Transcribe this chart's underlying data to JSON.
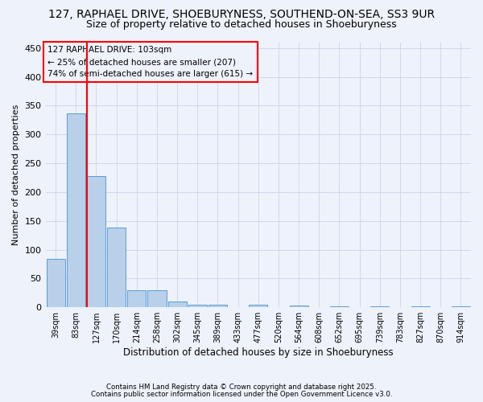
{
  "title": "127, RAPHAEL DRIVE, SHOEBURYNESS, SOUTHEND-ON-SEA, SS3 9UR",
  "subtitle": "Size of property relative to detached houses in Shoeburyness",
  "xlabel": "Distribution of detached houses by size in Shoeburyness",
  "ylabel": "Number of detached properties",
  "bins": [
    "39sqm",
    "83sqm",
    "127sqm",
    "170sqm",
    "214sqm",
    "258sqm",
    "302sqm",
    "345sqm",
    "389sqm",
    "433sqm",
    "477sqm",
    "520sqm",
    "564sqm",
    "608sqm",
    "652sqm",
    "695sqm",
    "739sqm",
    "783sqm",
    "827sqm",
    "870sqm",
    "914sqm"
  ],
  "values": [
    84,
    337,
    228,
    139,
    30,
    30,
    10,
    5,
    5,
    0,
    4,
    0,
    3,
    0,
    2,
    0,
    2,
    0,
    2,
    0,
    2
  ],
  "bar_color": "#b8d0ea",
  "bar_edge_color": "#5b9bd5",
  "red_line_index": 2,
  "annotation_line1": "127 RAPHAEL DRIVE: 103sqm",
  "annotation_line2": "← 25% of detached houses are smaller (207)",
  "annotation_line3": "74% of semi-detached houses are larger (615) →",
  "ylim": [
    0,
    460
  ],
  "yticks": [
    0,
    50,
    100,
    150,
    200,
    250,
    300,
    350,
    400,
    450
  ],
  "footnote1": "Contains HM Land Registry data © Crown copyright and database right 2025.",
  "footnote2": "Contains public sector information licensed under the Open Government Licence v3.0.",
  "bg_color": "#eef2fb",
  "grid_color": "#ccd4e8",
  "title_fontsize": 10,
  "subtitle_fontsize": 9,
  "ylabel_fontsize": 8,
  "xlabel_fontsize": 8.5,
  "annot_fontsize": 7.5,
  "tick_fontsize": 7
}
